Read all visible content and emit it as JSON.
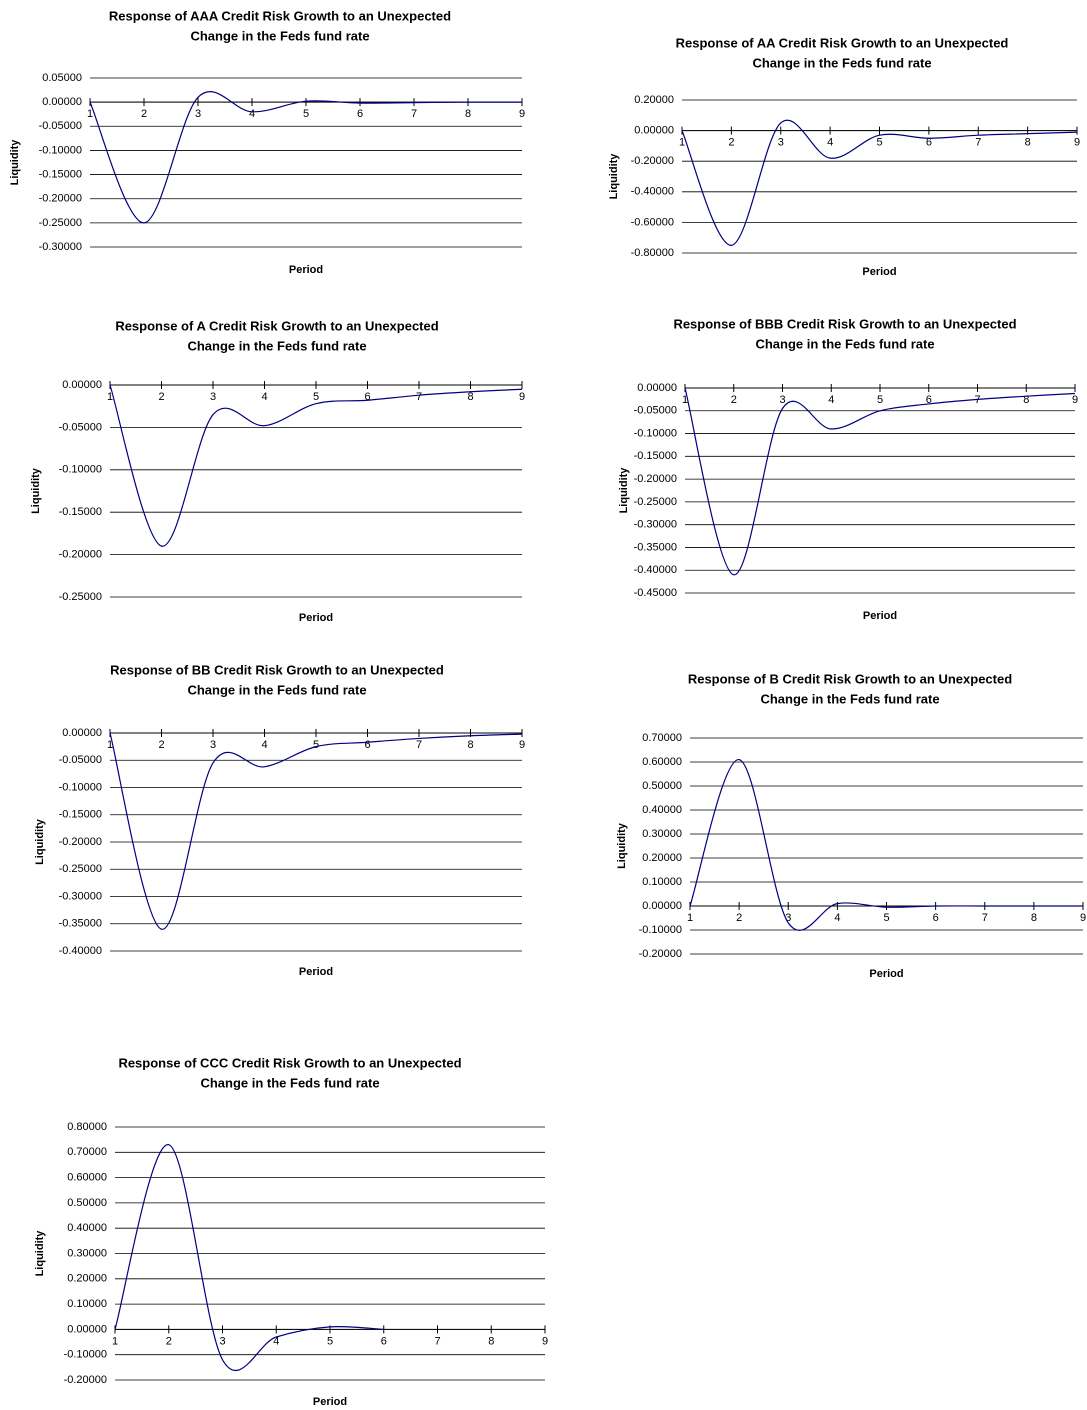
{
  "chart_data": [
    {
      "type": "line",
      "title": [
        "Response of AAA Credit Risk Growth to an Unexpected",
        "Change in the Feds fund rate"
      ],
      "x_label": "Period",
      "y_label": "Liquidity",
      "grid": true,
      "color": "#000080",
      "x": [
        1,
        2,
        3,
        4,
        5,
        6,
        7,
        8,
        9
      ],
      "xlim": [
        1,
        9
      ],
      "xticks": [
        1,
        2,
        3,
        4,
        5,
        6,
        7,
        8,
        9
      ],
      "values": [
        0,
        -0.25,
        0.01,
        -0.02,
        0.002,
        -0.002,
        -0.001,
        0,
        0
      ],
      "ylim": [
        -0.3,
        0.05
      ],
      "yticks": [
        {
          "value": -0.3,
          "label": "-0.30000"
        },
        {
          "value": -0.25,
          "label": "-0.25000"
        },
        {
          "value": -0.2,
          "label": "-0.20000"
        },
        {
          "value": -0.15,
          "label": "-0.15000"
        },
        {
          "value": -0.1,
          "label": "-0.10000"
        },
        {
          "value": -0.05,
          "label": "-0.05000"
        },
        {
          "value": 0,
          "label": "0.00000"
        },
        {
          "value": 0.05,
          "label": "0.05000"
        }
      ]
    },
    {
      "type": "line",
      "title": [
        "Response of AA Credit Risk Growth to an Unexpected",
        "Change in the Feds fund rate"
      ],
      "x_label": "Period",
      "y_label": "Liquidity",
      "grid": true,
      "color": "#000080",
      "x": [
        1,
        2,
        3,
        4,
        5,
        6,
        7,
        8,
        9
      ],
      "xlim": [
        1,
        9
      ],
      "xticks": [
        1,
        2,
        3,
        4,
        5,
        6,
        7,
        8,
        9
      ],
      "values": [
        0,
        -0.75,
        0.05,
        -0.18,
        -0.03,
        -0.05,
        -0.03,
        -0.02,
        -0.01
      ],
      "ylim": [
        -0.8,
        0.2
      ],
      "yticks": [
        {
          "value": -0.8,
          "label": "-0.80000"
        },
        {
          "value": -0.6,
          "label": "-0.60000"
        },
        {
          "value": -0.4,
          "label": "-0.40000"
        },
        {
          "value": -0.2,
          "label": "-0.20000"
        },
        {
          "value": 0,
          "label": "0.00000"
        },
        {
          "value": 0.2,
          "label": "0.20000"
        }
      ]
    },
    {
      "type": "line",
      "title": [
        "Response of A Credit Risk Growth to an Unexpected",
        "Change in the Feds fund rate"
      ],
      "x_label": "Period",
      "y_label": "Liquidity",
      "grid": true,
      "color": "#000080",
      "x": [
        1,
        2,
        3,
        4,
        5,
        6,
        7,
        8,
        9
      ],
      "xlim": [
        1,
        9
      ],
      "xticks": [
        1,
        2,
        3,
        4,
        5,
        6,
        7,
        8,
        9
      ],
      "values": [
        0,
        -0.19,
        -0.035,
        -0.048,
        -0.022,
        -0.018,
        -0.012,
        -0.008,
        -0.005
      ],
      "ylim": [
        -0.25,
        0
      ],
      "yticks": [
        {
          "value": -0.25,
          "label": "-0.25000"
        },
        {
          "value": -0.2,
          "label": "-0.20000"
        },
        {
          "value": -0.15,
          "label": "-0.15000"
        },
        {
          "value": -0.1,
          "label": "-0.10000"
        },
        {
          "value": -0.05,
          "label": "-0.05000"
        },
        {
          "value": 0,
          "label": "0.00000"
        }
      ]
    },
    {
      "type": "line",
      "title": [
        "Response of BBB Credit Risk Growth to an Unexpected",
        "Change in the Feds fund rate"
      ],
      "x_label": "Period",
      "y_label": "Liquidity",
      "grid": true,
      "color": "#000080",
      "x": [
        1,
        2,
        3,
        4,
        5,
        6,
        7,
        8,
        9
      ],
      "xlim": [
        1,
        9
      ],
      "xticks": [
        1,
        2,
        3,
        4,
        5,
        6,
        7,
        8,
        9
      ],
      "values": [
        0,
        -0.41,
        -0.045,
        -0.09,
        -0.05,
        -0.035,
        -0.025,
        -0.018,
        -0.012
      ],
      "ylim": [
        -0.45,
        0
      ],
      "yticks": [
        {
          "value": -0.45,
          "label": "-0.45000"
        },
        {
          "value": -0.4,
          "label": "-0.40000"
        },
        {
          "value": -0.35,
          "label": "-0.35000"
        },
        {
          "value": -0.3,
          "label": "-0.30000"
        },
        {
          "value": -0.25,
          "label": "-0.25000"
        },
        {
          "value": -0.2,
          "label": "-0.20000"
        },
        {
          "value": -0.15,
          "label": "-0.15000"
        },
        {
          "value": -0.1,
          "label": "-0.10000"
        },
        {
          "value": -0.05,
          "label": "-0.05000"
        },
        {
          "value": 0,
          "label": "0.00000"
        }
      ]
    },
    {
      "type": "line",
      "title": [
        "Response of BB Credit Risk Growth to an Unexpected",
        "Change in the Feds fund rate"
      ],
      "x_label": "Period",
      "y_label": "Liquidity",
      "grid": true,
      "color": "#000080",
      "x": [
        1,
        2,
        3,
        4,
        5,
        6,
        7,
        8,
        9
      ],
      "xlim": [
        1,
        9
      ],
      "xticks": [
        1,
        2,
        3,
        4,
        5,
        6,
        7,
        8,
        9
      ],
      "values": [
        0,
        -0.36,
        -0.055,
        -0.062,
        -0.025,
        -0.017,
        -0.01,
        -0.005,
        -0.002
      ],
      "ylim": [
        -0.4,
        0
      ],
      "yticks": [
        {
          "value": -0.4,
          "label": "-0.40000"
        },
        {
          "value": -0.35,
          "label": "-0.35000"
        },
        {
          "value": -0.3,
          "label": "-0.30000"
        },
        {
          "value": -0.25,
          "label": "-0.25000"
        },
        {
          "value": -0.2,
          "label": "-0.20000"
        },
        {
          "value": -0.15,
          "label": "-0.15000"
        },
        {
          "value": -0.1,
          "label": "-0.10000"
        },
        {
          "value": -0.05,
          "label": "-0.05000"
        },
        {
          "value": 0,
          "label": "0.00000"
        }
      ]
    },
    {
      "type": "line",
      "title": [
        "Response of B Credit Risk Growth to an Unexpected",
        "Change in the Feds fund rate"
      ],
      "x_label": "Period",
      "y_label": "Liquidity",
      "grid": true,
      "color": "#000080",
      "x": [
        1,
        2,
        3,
        4,
        5,
        6,
        7,
        8,
        9
      ],
      "xlim": [
        1,
        9
      ],
      "xticks": [
        1,
        2,
        3,
        4,
        5,
        6,
        7,
        8,
        9
      ],
      "values": [
        0,
        0.61,
        -0.07,
        0.01,
        -0.005,
        0,
        0,
        0,
        0
      ],
      "ylim": [
        -0.2,
        0.7
      ],
      "yticks": [
        {
          "value": -0.2,
          "label": "-0.20000"
        },
        {
          "value": -0.1,
          "label": "-0.10000"
        },
        {
          "value": 0,
          "label": "0.00000"
        },
        {
          "value": 0.1,
          "label": "0.10000"
        },
        {
          "value": 0.2,
          "label": "0.20000"
        },
        {
          "value": 0.3,
          "label": "0.30000"
        },
        {
          "value": 0.4,
          "label": "0.40000"
        },
        {
          "value": 0.5,
          "label": "0.50000"
        },
        {
          "value": 0.6,
          "label": "0.60000"
        },
        {
          "value": 0.7,
          "label": "0.70000"
        }
      ]
    },
    {
      "type": "line",
      "title": [
        "Response of CCC Credit Risk Growth to an Unexpected",
        "Change in the Feds fund rate"
      ],
      "x_label": "Period",
      "y_label": "Liquidity",
      "grid": true,
      "color": "#000080",
      "x": [
        1,
        2,
        3,
        4,
        5,
        6,
        7,
        8,
        9
      ],
      "xlim": [
        1,
        9
      ],
      "xticks": [
        1,
        2,
        3,
        4,
        5,
        6,
        7,
        8,
        9
      ],
      "values": [
        0,
        0.73,
        -0.12,
        -0.03,
        0.01,
        0,
        null,
        null,
        null
      ],
      "ylim": [
        -0.2,
        0.8
      ],
      "yticks": [
        {
          "value": -0.2,
          "label": "-0.20000"
        },
        {
          "value": -0.1,
          "label": "-0.10000"
        },
        {
          "value": 0,
          "label": "0.00000"
        },
        {
          "value": 0.1,
          "label": "0.10000"
        },
        {
          "value": 0.2,
          "label": "0.20000"
        },
        {
          "value": 0.3,
          "label": "0.30000"
        },
        {
          "value": 0.4,
          "label": "0.40000"
        },
        {
          "value": 0.5,
          "label": "0.50000"
        },
        {
          "value": 0.6,
          "label": "0.60000"
        },
        {
          "value": 0.7,
          "label": "0.70000"
        },
        {
          "value": 0.8,
          "label": "0.80000"
        }
      ]
    }
  ]
}
